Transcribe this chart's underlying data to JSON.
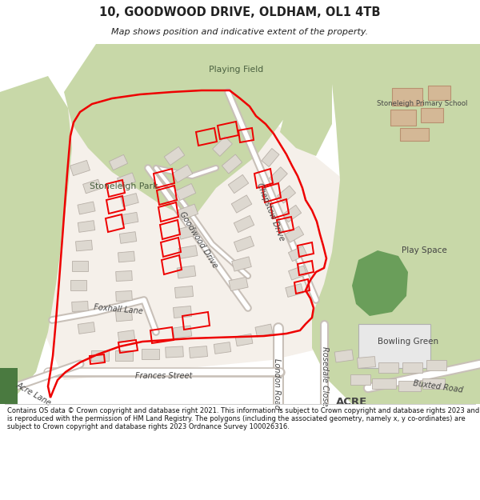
{
  "title_line1": "10, GOODWOOD DRIVE, OLDHAM, OL1 4TB",
  "title_line2": "Map shows position and indicative extent of the property.",
  "footer": "Contains OS data © Crown copyright and database right 2021. This information is subject to Crown copyright and database rights 2023 and is reproduced with the permission of HM Land Registry. The polygons (including the associated geometry, namely x, y co-ordinates) are subject to Crown copyright and database rights 2023 Ordnance Survey 100026316.",
  "bg_color": "#ffffff",
  "map_bg": "#f0ebe4",
  "green_light": "#c8d8a8",
  "green_medium": "#a8c080",
  "green_dark": "#6a9e5a",
  "road_color": "#ffffff",
  "building_fill": "#ddd8d0",
  "building_outline": "#b8b0a8",
  "school_fill": "#d4b896",
  "school_outline": "#b89070",
  "red_boundary": "#ee0000",
  "text_dark": "#222222",
  "text_gray": "#444444",
  "green_label": "#4a6040"
}
